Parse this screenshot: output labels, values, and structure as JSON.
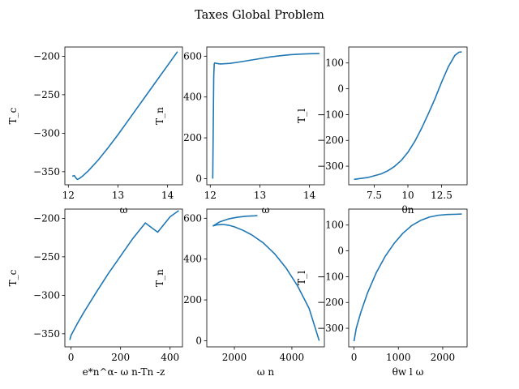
{
  "figure": {
    "title": "Taxes Global Problem"
  },
  "colors": {
    "line": "#1f77b4",
    "axes": "#000000",
    "background": "#ffffff"
  },
  "chart_data": [
    {
      "type": "line",
      "xlabel": "ω",
      "ylabel": "T_c",
      "xlim": [
        11.93,
        14.3
      ],
      "ylim": [
        -367,
        -188
      ],
      "xticks": [
        12,
        13,
        14
      ],
      "yticks": [
        -350,
        -300,
        -250,
        -200
      ],
      "x": [
        12.08,
        12.12,
        12.15,
        12.18,
        12.22,
        12.3,
        12.4,
        12.6,
        12.8,
        13.0,
        13.2,
        13.4,
        13.6,
        13.8,
        14.0,
        14.2
      ],
      "y": [
        -356,
        -355,
        -358,
        -360,
        -359,
        -355,
        -349,
        -335,
        -319,
        -302,
        -284,
        -266,
        -248,
        -230,
        -212,
        -194
      ]
    },
    {
      "type": "line",
      "xlabel": "ω",
      "ylabel": "T_n",
      "xlim": [
        11.93,
        14.3
      ],
      "ylim": [
        -30,
        645
      ],
      "xticks": [
        12,
        13,
        14
      ],
      "yticks": [
        0,
        200,
        400,
        600
      ],
      "x": [
        12.05,
        12.06,
        12.07,
        12.08,
        12.09,
        12.12,
        12.2,
        12.4,
        12.6,
        12.8,
        13.0,
        13.2,
        13.4,
        13.6,
        13.8,
        14.0,
        14.2
      ],
      "y": [
        0,
        250,
        500,
        562,
        567,
        565,
        562,
        565,
        572,
        580,
        588,
        596,
        602,
        607,
        610,
        612,
        613
      ]
    },
    {
      "type": "line",
      "xlabel": "θn",
      "ylabel": "T_l",
      "xlim": [
        5.6,
        14.4
      ],
      "ylim": [
        -372,
        162
      ],
      "xticks": [
        7.5,
        10.0,
        12.5
      ],
      "yticks": [
        -300,
        -200,
        -100,
        0,
        100
      ],
      "x": [
        6.0,
        7.0,
        8.0,
        8.5,
        9.0,
        9.5,
        10.0,
        10.5,
        11.0,
        11.5,
        12.0,
        12.5,
        13.0,
        13.5,
        13.8,
        14.0
      ],
      "y": [
        -351,
        -344,
        -330,
        -318,
        -301,
        -278,
        -246,
        -205,
        -155,
        -99,
        -40,
        25,
        85,
        130,
        142,
        143
      ]
    },
    {
      "type": "line",
      "xlabel": "e*n^α- ω n-Tn -z",
      "ylabel": "T_c",
      "xlim": [
        -25,
        450
      ],
      "ylim": [
        -367,
        -188
      ],
      "xticks": [
        0,
        200,
        400
      ],
      "yticks": [
        -350,
        -300,
        -250,
        -200
      ],
      "x": [
        -5,
        0,
        25,
        50,
        100,
        150,
        200,
        250,
        300,
        350,
        400,
        435
      ],
      "y": [
        -358,
        -352,
        -337,
        -323,
        -297,
        -272,
        -249,
        -226,
        -206,
        -218,
        -198,
        -190
      ]
    },
    {
      "type": "line",
      "xlabel": "ω n",
      "ylabel": "T_n",
      "xlim": [
        1040,
        5130
      ],
      "ylim": [
        -30,
        645
      ],
      "xticks": [
        2000,
        4000
      ],
      "yticks": [
        0,
        200,
        400,
        600
      ],
      "x": [
        1250,
        1400,
        1600,
        1800,
        2000,
        2300,
        2600,
        3000,
        3400,
        3800,
        4200,
        4600,
        4950
      ],
      "y": [
        562,
        568,
        570,
        566,
        558,
        541,
        519,
        480,
        426,
        356,
        268,
        158,
        0
      ],
      "upper_branch": {
        "x": [
          1250,
          1500,
          1800,
          2100,
          2400,
          2700,
          2800
        ],
        "y": [
          562,
          583,
          597,
          605,
          610,
          612,
          613
        ]
      }
    },
    {
      "type": "line",
      "xlabel": "θw l ω",
      "ylabel": "T_l",
      "xlim": [
        -120,
        2550
      ],
      "ylim": [
        -372,
        162
      ],
      "xticks": [
        0,
        1000,
        2000
      ],
      "yticks": [
        -300,
        -200,
        -100,
        0,
        100
      ],
      "x": [
        0,
        50,
        150,
        300,
        500,
        700,
        900,
        1100,
        1300,
        1500,
        1700,
        1900,
        2100,
        2300,
        2430
      ],
      "y": [
        -350,
        -300,
        -240,
        -165,
        -85,
        -22,
        28,
        68,
        98,
        118,
        131,
        138,
        141,
        142,
        143
      ]
    }
  ]
}
